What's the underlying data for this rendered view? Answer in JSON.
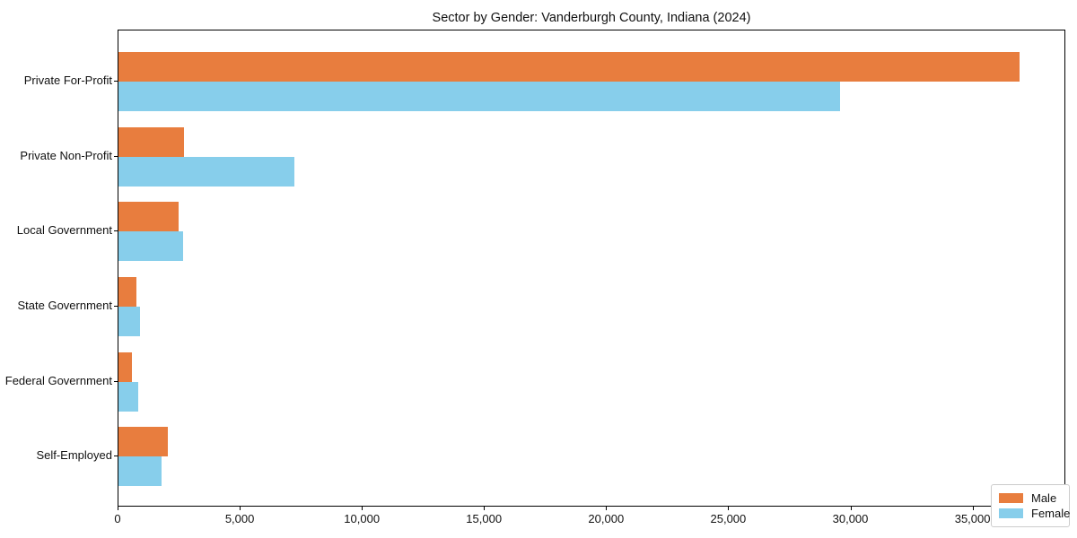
{
  "title": "Sector by Gender: Vanderburgh County, Indiana (2024)",
  "chart_data": {
    "type": "bar",
    "orientation": "horizontal",
    "title": "Sector by Gender: Vanderburgh County, Indiana (2024)",
    "xlabel": "",
    "ylabel": "",
    "categories": [
      "Private For-Profit",
      "Private Non-Profit",
      "Local Government",
      "State Government",
      "Federal Government",
      "Self-Employed"
    ],
    "series": [
      {
        "name": "Male",
        "color": "#e87d3e",
        "values": [
          36900,
          2680,
          2460,
          740,
          550,
          2020
        ]
      },
      {
        "name": "Female",
        "color": "#87ceeb",
        "values": [
          29550,
          7200,
          2650,
          880,
          810,
          1770
        ]
      }
    ],
    "xlim": [
      0,
      38800
    ],
    "x_ticks": [
      0,
      5000,
      10000,
      15000,
      20000,
      25000,
      30000,
      35000
    ],
    "x_tick_labels": [
      "0",
      "5,000",
      "10,000",
      "15,000",
      "20,000",
      "25,000",
      "30,000",
      "35,000"
    ],
    "grid": false,
    "legend_position": "lower right"
  },
  "legend": {
    "items": [
      {
        "label": "Male",
        "color": "#e87d3e"
      },
      {
        "label": "Female",
        "color": "#87ceeb"
      }
    ]
  }
}
